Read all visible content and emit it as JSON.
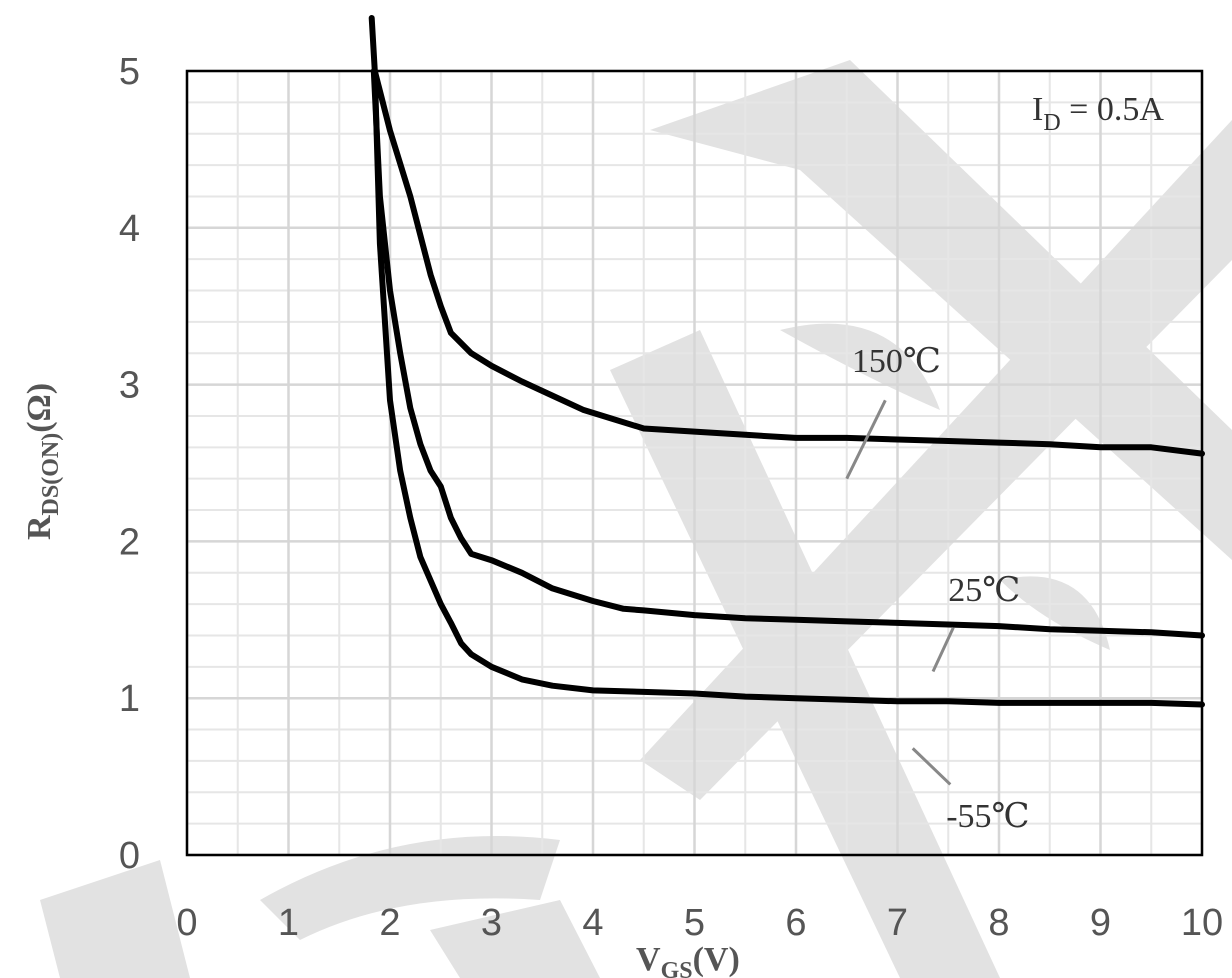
{
  "chart_data": {
    "type": "line",
    "title": "",
    "xlabel": "V",
    "xlabel_sub": "GS",
    "xlabel_unit": "(V)",
    "ylabel": "R",
    "ylabel_sub": "DS(ON)",
    "ylabel_unit": "(Ω)",
    "xlim": [
      0,
      10
    ],
    "ylim": [
      0,
      5
    ],
    "x_ticks": [
      "0",
      "1",
      "2",
      "3",
      "4",
      "5",
      "6",
      "7",
      "8",
      "9",
      "10"
    ],
    "y_ticks": [
      "0",
      "1",
      "2",
      "3",
      "4",
      "5"
    ],
    "grid": true,
    "annotation": {
      "main": "I",
      "sub": "D",
      "rest": " = 0.5A"
    },
    "colors": {
      "line": "#000000",
      "grid": "#d6d6d6",
      "leader": "#888888",
      "watermark": "#dcdcdc"
    },
    "series": [
      {
        "name": "150℃",
        "x": [
          1.85,
          2.0,
          2.2,
          2.4,
          2.5,
          2.6,
          2.8,
          3.0,
          3.3,
          3.6,
          3.9,
          4.2,
          4.5,
          5.0,
          5.5,
          6.0,
          6.5,
          7.0,
          7.5,
          8.0,
          8.5,
          9.0,
          9.5,
          10.0
        ],
        "y": [
          5.0,
          4.62,
          4.2,
          3.7,
          3.5,
          3.33,
          3.2,
          3.12,
          3.02,
          2.93,
          2.84,
          2.78,
          2.72,
          2.7,
          2.68,
          2.66,
          2.66,
          2.65,
          2.64,
          2.63,
          2.62,
          2.6,
          2.6,
          2.56
        ]
      },
      {
        "name": "25℃",
        "x": [
          1.84,
          1.9,
          2.0,
          2.1,
          2.2,
          2.3,
          2.4,
          2.5,
          2.6,
          2.7,
          2.8,
          3.0,
          3.3,
          3.6,
          4.0,
          4.3,
          4.5,
          5.0,
          5.5,
          6.0,
          6.5,
          7.0,
          7.5,
          8.0,
          8.5,
          9.0,
          9.5,
          10.0
        ],
        "y": [
          5.0,
          4.2,
          3.6,
          3.2,
          2.85,
          2.62,
          2.45,
          2.35,
          2.15,
          2.02,
          1.92,
          1.88,
          1.8,
          1.7,
          1.62,
          1.57,
          1.56,
          1.53,
          1.51,
          1.5,
          1.49,
          1.48,
          1.47,
          1.46,
          1.44,
          1.43,
          1.42,
          1.4
        ]
      },
      {
        "name": "-55℃",
        "x": [
          1.82,
          1.85,
          1.9,
          2.0,
          2.1,
          2.2,
          2.3,
          2.4,
          2.5,
          2.6,
          2.7,
          2.8,
          3.0,
          3.3,
          3.6,
          4.0,
          4.5,
          5.0,
          5.5,
          6.0,
          6.5,
          7.0,
          7.5,
          8.0,
          8.5,
          9.0,
          9.5,
          10.0
        ],
        "y": [
          5.5,
          5.0,
          3.9,
          2.9,
          2.45,
          2.15,
          1.9,
          1.75,
          1.6,
          1.48,
          1.35,
          1.28,
          1.2,
          1.12,
          1.08,
          1.05,
          1.04,
          1.03,
          1.01,
          1.0,
          0.99,
          0.98,
          0.98,
          0.97,
          0.97,
          0.97,
          0.97,
          0.96
        ]
      }
    ],
    "series_labels": [
      {
        "text": "150℃",
        "x": 6.55,
        "y": 3.08,
        "to_x": 6.5,
        "to_y": 2.4,
        "from_x": 6.88,
        "from_y": 2.9
      },
      {
        "text": "25℃",
        "x": 7.5,
        "y": 1.62,
        "to_x": 7.35,
        "to_y": 1.17,
        "from_x": 7.55,
        "from_y": 1.45
      },
      {
        "text": "-55℃",
        "x": 7.48,
        "y": 0.18,
        "to_x": 7.15,
        "to_y": 0.68,
        "from_x": 7.52,
        "from_y": 0.45
      }
    ]
  }
}
